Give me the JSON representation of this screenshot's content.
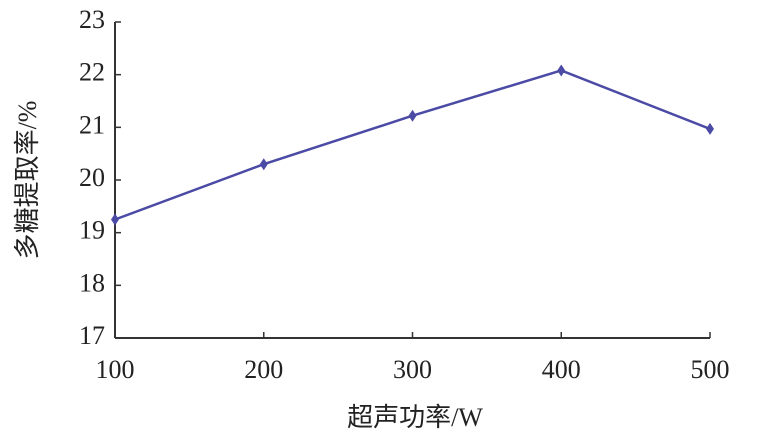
{
  "chart_data": {
    "type": "line",
    "x_label": "超声功率/W",
    "y_label": "多糖提取率/%",
    "x": [
      100,
      200,
      300,
      400,
      500
    ],
    "series": [
      {
        "name": "多糖提取率",
        "color": "#4b4ba6",
        "values": [
          19.25,
          20.3,
          21.22,
          22.08,
          20.97
        ]
      }
    ],
    "xlim": [
      100,
      500
    ],
    "xticks": [
      100,
      200,
      300,
      400,
      500
    ],
    "ylim": [
      17,
      23
    ],
    "yticks": [
      17,
      18,
      19,
      20,
      21,
      22,
      23
    ],
    "grid": false
  }
}
